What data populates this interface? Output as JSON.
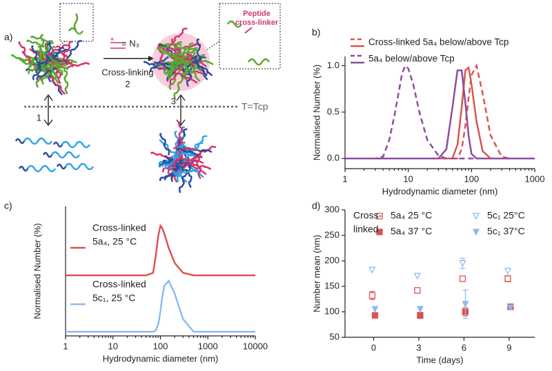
{
  "diagram": {
    "panel_label": "a)",
    "reagent": "= N₃",
    "step_label": "Cross-linking",
    "step_number": "2",
    "inset_label": [
      "Peptide",
      "cross-linker"
    ],
    "threshold": "T=Tcp",
    "arrow_left": "1",
    "arrow_right": "3"
  },
  "chart_data": [
    {
      "type": "line",
      "panel_label": "b)",
      "xlabel": "Hydrodynamic diameter (nm)",
      "ylabel": "Normalised Number (%)",
      "xscale": "log",
      "xlim": [
        1,
        1000
      ],
      "xticks": [
        1,
        10,
        100,
        1000
      ],
      "ylim": [
        -0.05,
        1.1
      ],
      "yticks": [
        {
          "value": 0,
          "label": "0.0"
        },
        0.5,
        {
          "value": 1,
          "label": "1.0"
        }
      ],
      "x": [
        1,
        3,
        4,
        5,
        6,
        7,
        8,
        9,
        10,
        12,
        15,
        20,
        30,
        40,
        50,
        60,
        70,
        80,
        90,
        100,
        120,
        150,
        200,
        300,
        400,
        1000
      ],
      "series": [
        {
          "name": "Cross-linked 5a₄ below/above Tcp",
          "color": "#d9534f",
          "below": [
            0,
            0,
            0,
            0,
            0,
            0,
            0,
            0,
            0,
            0,
            0,
            0,
            0,
            0,
            0,
            0.15,
            0.55,
            0.95,
            0.98,
            0.8,
            0.4,
            0.08,
            0,
            0,
            0,
            0
          ],
          "above": [
            0,
            0,
            0,
            0,
            0,
            0,
            0,
            0,
            0,
            0,
            0,
            0,
            0,
            0,
            0,
            0,
            0.1,
            0.35,
            0.65,
            0.9,
            1.0,
            0.7,
            0.25,
            0.02,
            0,
            0
          ]
        },
        {
          "name": "5a₄ below/above Tcp",
          "color": "#8e4b9e",
          "below": [
            0,
            0,
            0,
            0,
            0,
            0,
            0,
            0,
            0,
            0,
            0,
            0,
            0,
            0.1,
            0.55,
            0.95,
            0.95,
            0.6,
            0.25,
            0.05,
            0,
            0,
            0,
            0,
            0,
            0
          ],
          "above": [
            0,
            0,
            0.02,
            0.2,
            0.45,
            0.7,
            0.92,
            1.0,
            0.97,
            0.8,
            0.5,
            0.2,
            0.03,
            0,
            0,
            0,
            0,
            0,
            0,
            0,
            0,
            0,
            0,
            0,
            0,
            0
          ]
        }
      ]
    },
    {
      "type": "ridgeline",
      "panel_label": "c)",
      "xlabel": "Hydrodynamic diameter (nm)",
      "ylabel": "Normalised Number (%)",
      "xscale": "log",
      "xlim": [
        1,
        10000
      ],
      "xticks": [
        1,
        10,
        100,
        1000,
        10000
      ],
      "x": [
        1,
        50,
        70,
        80,
        90,
        100,
        110,
        120,
        150,
        200,
        300,
        500,
        10000
      ],
      "series": [
        {
          "name": [
            "Cross-linked",
            "5a₄, 25 °C"
          ],
          "color": "#d9534f",
          "values": [
            0,
            0,
            0.05,
            0.4,
            0.8,
            1.0,
            0.95,
            0.85,
            0.55,
            0.25,
            0.05,
            0,
            0
          ]
        },
        {
          "name": [
            "Cross-linked",
            "5c₁, 25 °C"
          ],
          "color": "#8bbcf0",
          "values": [
            0,
            0,
            0,
            0.03,
            0.15,
            0.4,
            0.7,
            0.9,
            1.0,
            0.75,
            0.25,
            0,
            0
          ]
        }
      ]
    },
    {
      "type": "scatter",
      "panel_label": "d)",
      "xlabel": "Time (days)",
      "ylabel": "Number mean (nm)",
      "xlim": [
        -1.9,
        10.7
      ],
      "xticks": [
        0,
        3,
        6,
        9
      ],
      "ylim": [
        50,
        300
      ],
      "yticks": [
        50,
        100,
        150,
        200,
        250,
        300
      ],
      "legend_title": [
        "Cross-",
        "linked"
      ],
      "x": [
        0,
        3,
        6,
        9
      ],
      "series": [
        {
          "name": "5a₄ 25 °C",
          "color": "#d9534f",
          "marker": "square",
          "filled": false,
          "values": [
            132,
            142,
            165,
            165
          ],
          "errors": [
            8,
            null,
            5,
            6
          ]
        },
        {
          "name": "5a₄ 37 °C",
          "color": "#d9534f",
          "marker": "square",
          "filled": true,
          "values": [
            93,
            93,
            100,
            110
          ],
          "errors": [
            null,
            6,
            8,
            null
          ]
        },
        {
          "name": "5c₁ 25°C",
          "color": "#8bbcf0",
          "marker": "triangle-down",
          "filled": false,
          "values": [
            182,
            170,
            195,
            180
          ],
          "errors": [
            null,
            null,
            10,
            null
          ]
        },
        {
          "name": "5c₁ 37°C",
          "color": "#8bbcf0",
          "marker": "triangle-down",
          "filled": true,
          "values": [
            105,
            105,
            115,
            108
          ],
          "errors": [
            null,
            null,
            28,
            null
          ]
        }
      ]
    }
  ]
}
